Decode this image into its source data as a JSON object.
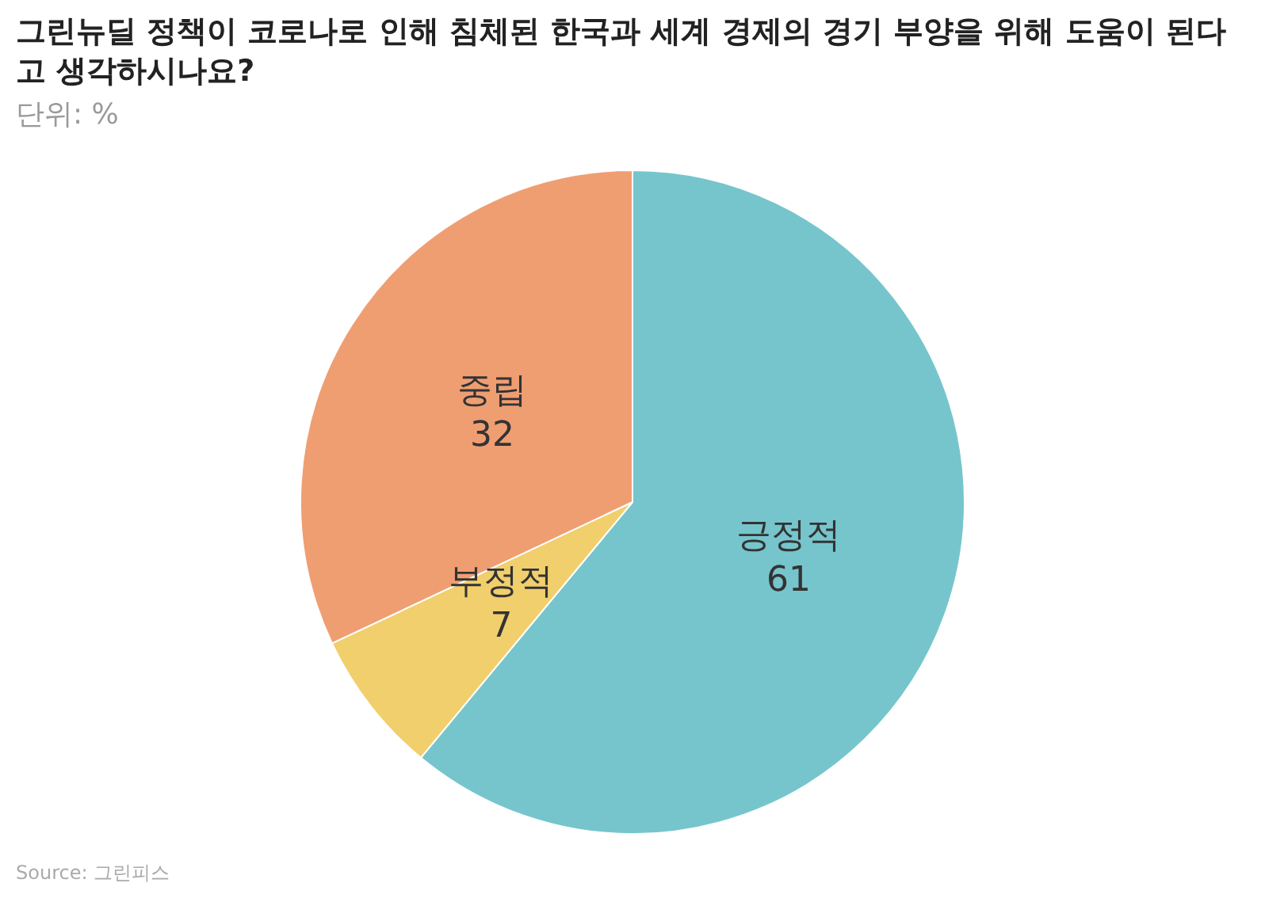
{
  "chart_data": {
    "type": "pie",
    "title": "그린뉴딜 정책이 코로나로 인해 침체된 한국과 세계 경제의 경기 부양을 위해 도움이 된다고 생각하시나요?",
    "subtitle": "단위: %",
    "categories": [
      "긍정적",
      "부정적",
      "중립"
    ],
    "values": [
      61,
      7,
      32
    ],
    "colors": [
      "#76c5cc",
      "#f0cf6c",
      "#ef9e72"
    ],
    "data_labels": true,
    "annotations": [
      "Source: 그린피스"
    ]
  }
}
